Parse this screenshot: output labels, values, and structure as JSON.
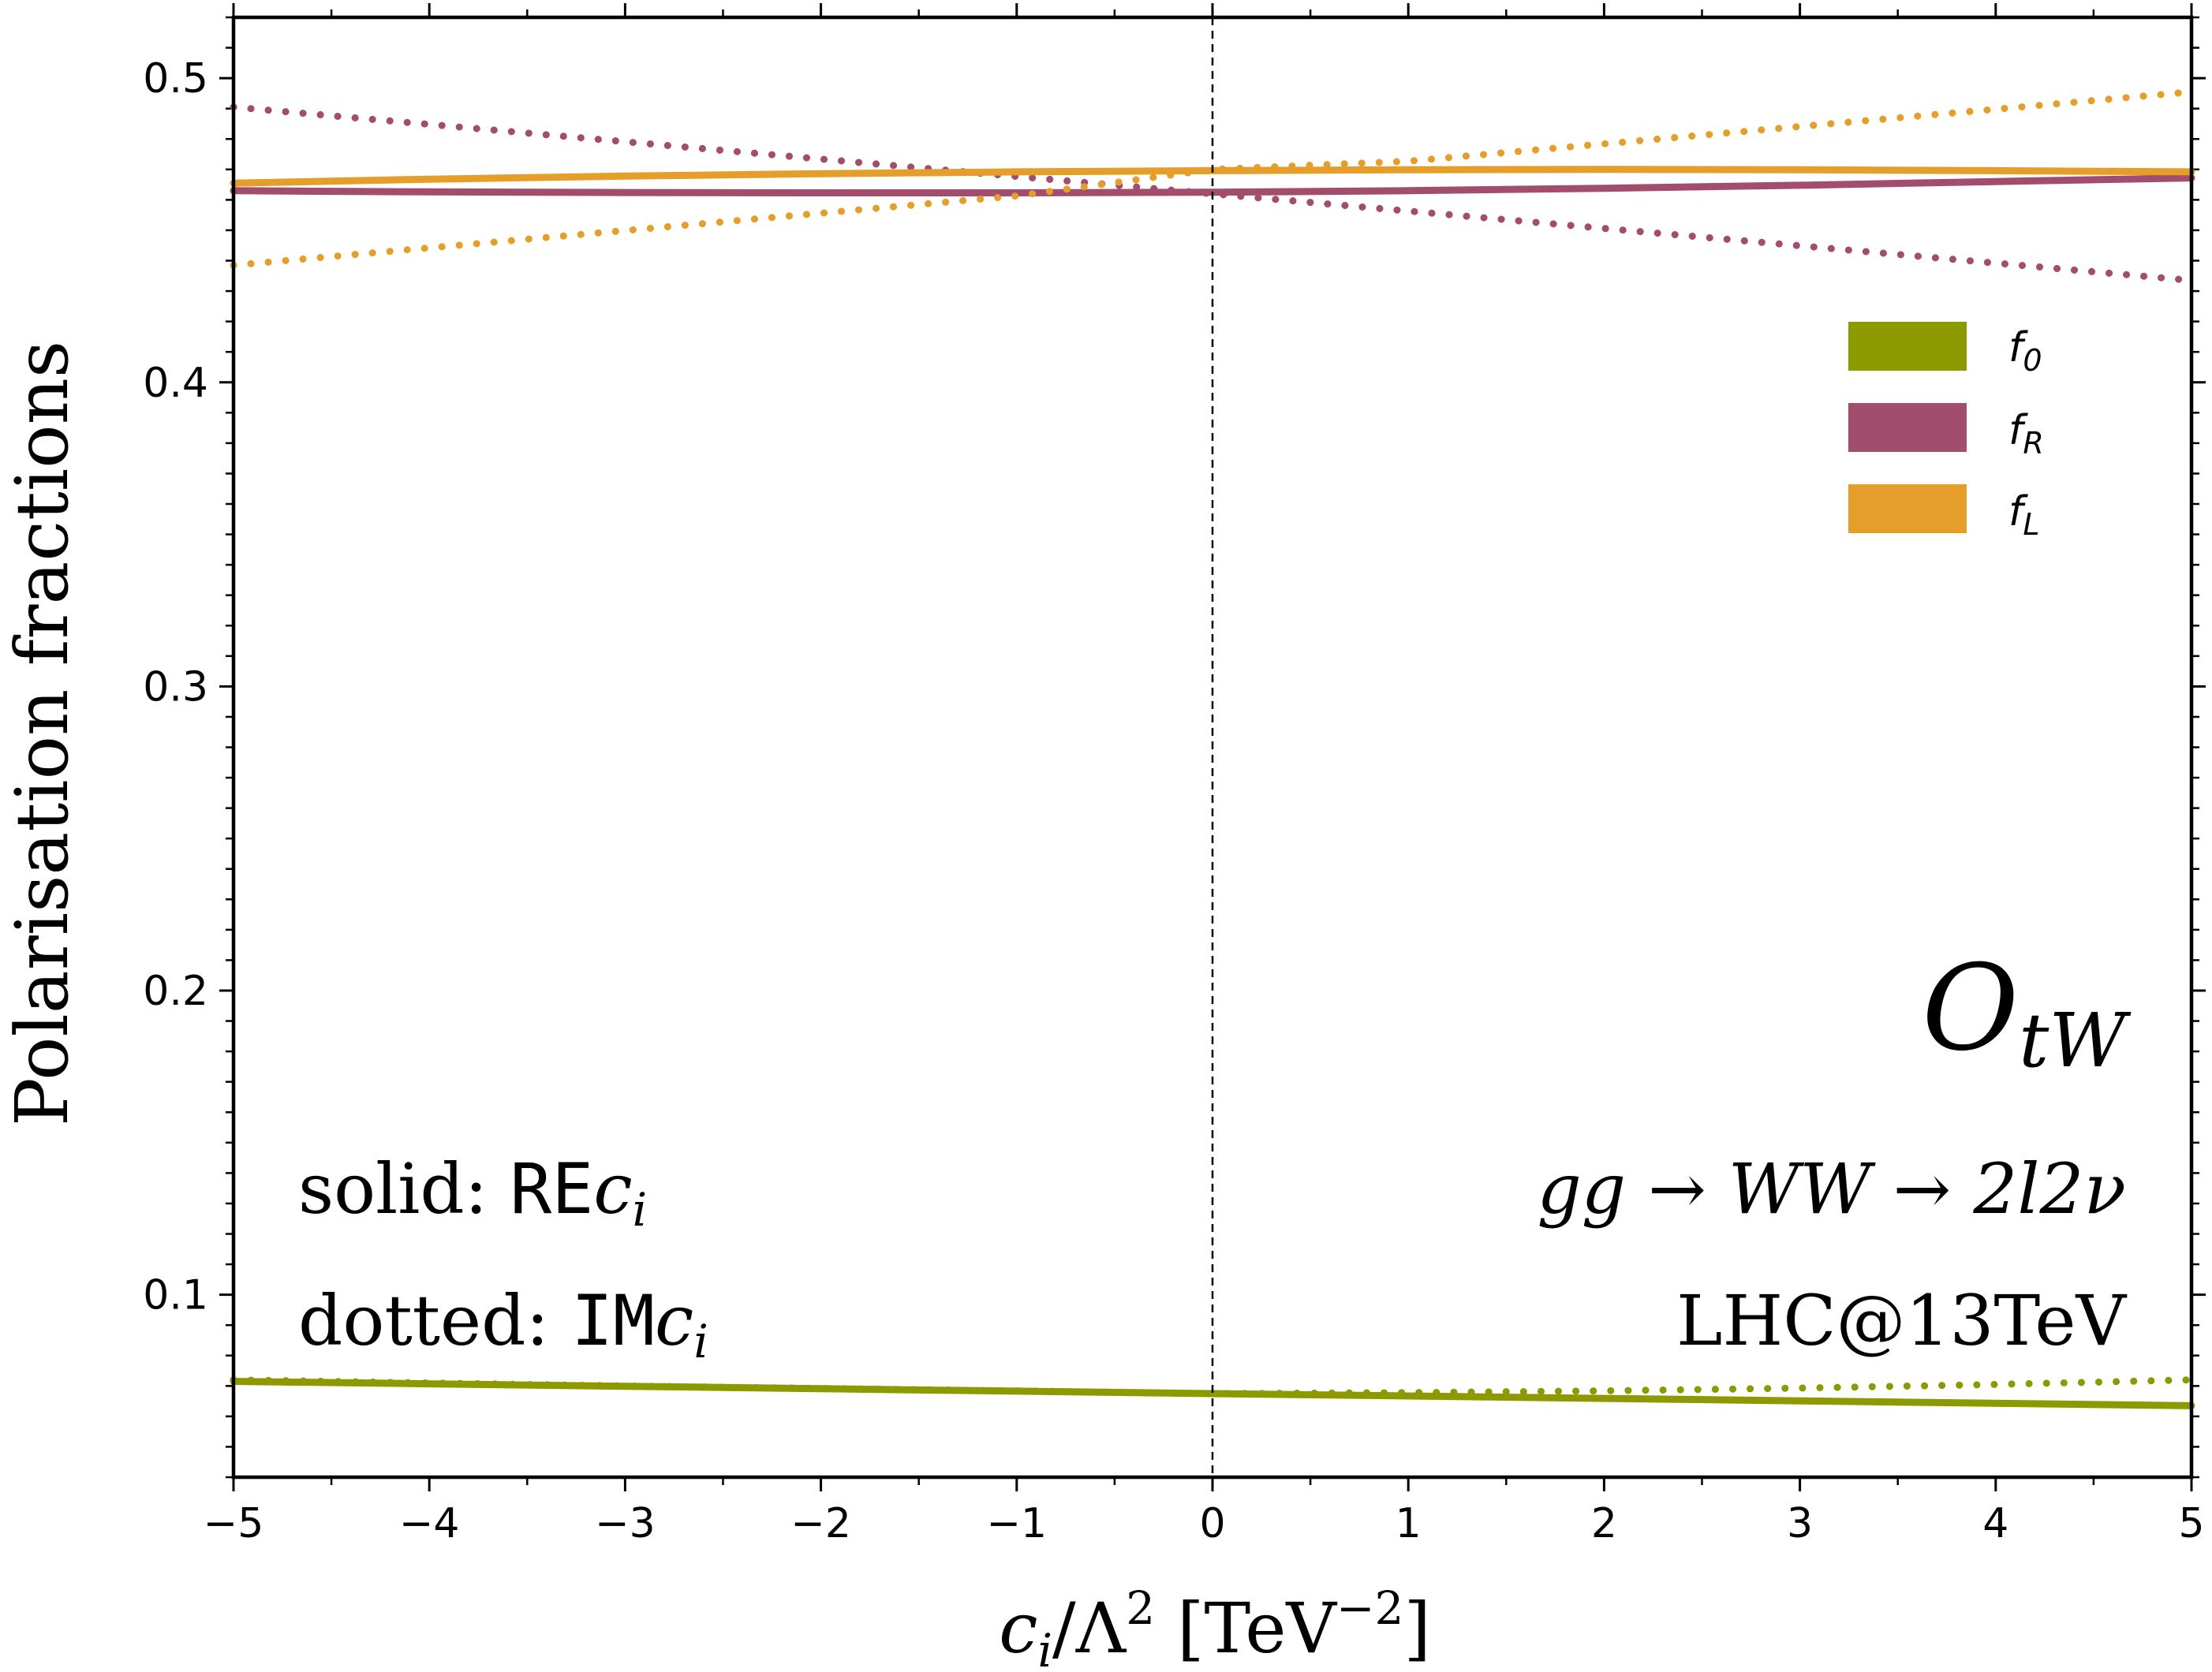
{
  "chart_data": {
    "type": "line",
    "ylabel": "Polarisation fractions",
    "xlabel": {
      "main": "c",
      "sub": "i",
      "mid": "/Λ",
      "sup1": "2",
      "unit": " [TeV",
      "sup2": "−2",
      "close": "]"
    },
    "xlim": [
      -5,
      5
    ],
    "ylim": [
      0.04,
      0.52
    ],
    "x_ticks": [
      -5,
      -4,
      -3,
      -2,
      -1,
      0,
      1,
      2,
      3,
      4,
      5
    ],
    "x_tick_labels": [
      "−5",
      "−4",
      "−3",
      "−2",
      "−1",
      "0",
      "1",
      "2",
      "3",
      "4",
      "5"
    ],
    "y_ticks": [
      0.1,
      0.2,
      0.3,
      0.4,
      0.5
    ],
    "y_tick_labels": [
      "0.1",
      "0.2",
      "0.3",
      "0.4",
      "0.5"
    ],
    "x": [
      -5,
      -4,
      -3,
      -2,
      -1,
      0,
      1,
      2,
      3,
      4,
      5
    ],
    "series": [
      {
        "name": "f0",
        "label_main": "f",
        "label_sub": "0",
        "color": "#8c9a00",
        "style": "solid",
        "values": [
          0.0715,
          0.0707,
          0.0699,
          0.0691,
          0.0683,
          0.0675,
          0.0667,
          0.0659,
          0.0651,
          0.0643,
          0.0635
        ]
      },
      {
        "name": "f0",
        "color": "#8c9a00",
        "style": "dotted",
        "values": [
          0.072,
          0.071,
          0.07,
          0.0692,
          0.0684,
          0.0675,
          0.0678,
          0.0684,
          0.0693,
          0.0705,
          0.072
        ]
      },
      {
        "name": "fR",
        "label_main": "f",
        "label_sub": "R",
        "color": "#a24c6e",
        "style": "solid",
        "values": [
          0.463,
          0.4626,
          0.4624,
          0.4623,
          0.4623,
          0.4625,
          0.463,
          0.4638,
          0.4648,
          0.466,
          0.4672
        ]
      },
      {
        "name": "fR",
        "color": "#a24c6e",
        "style": "dotted",
        "values": [
          0.4905,
          0.4848,
          0.4791,
          0.4734,
          0.4677,
          0.462,
          0.4563,
          0.4506,
          0.4449,
          0.4392,
          0.4335
        ]
      },
      {
        "name": "fL",
        "label_main": "f",
        "label_sub": "L",
        "color": "#e59e2a",
        "style": "solid",
        "values": [
          0.4655,
          0.4668,
          0.4678,
          0.4686,
          0.4692,
          0.4696,
          0.4699,
          0.47,
          0.4699,
          0.4696,
          0.4692
        ]
      },
      {
        "name": "fL",
        "color": "#e59e2a",
        "style": "dotted",
        "values": [
          0.4385,
          0.4442,
          0.4499,
          0.4556,
          0.4613,
          0.47,
          0.4727,
          0.4784,
          0.4841,
          0.4898,
          0.4955
        ]
      }
    ],
    "legend": {
      "placement": "upper-right"
    },
    "annotations": {
      "operator_main": "O",
      "operator_sub": "tW",
      "solid_prefix": "solid: ",
      "solid_mono": "RE",
      "solid_var": "c",
      "solid_sub": "i",
      "dotted_prefix": "dotted: ",
      "dotted_mono": "IM",
      "dotted_var": "c",
      "dotted_sub": "i",
      "process": "gg → WW → 2l2ν",
      "collider": "LHC@13TeV"
    }
  }
}
